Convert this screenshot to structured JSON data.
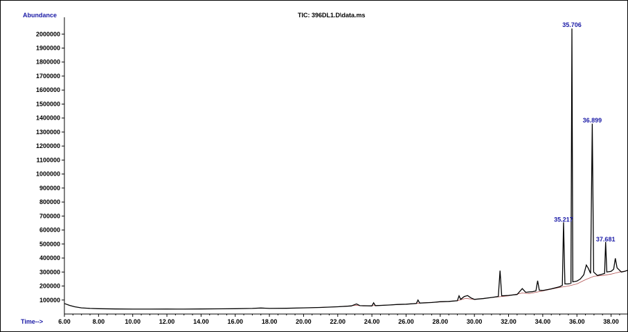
{
  "chart_data": {
    "type": "line",
    "title": "TIC: 396DL1.D\\data.ms",
    "ylabel": "Abundance",
    "xlabel": "Time-->",
    "xlim": [
      6.0,
      38.95
    ],
    "ylim": [
      0,
      2110000
    ],
    "grid": false,
    "x_ticks": [
      "6.00",
      "8.00",
      "10.00",
      "12.00",
      "14.00",
      "16.00",
      "18.00",
      "20.00",
      "22.00",
      "24.00",
      "26.00",
      "28.00",
      "30.00",
      "32.00",
      "34.00",
      "36.00",
      "38.00"
    ],
    "y_ticks": [
      "100000",
      "200000",
      "300000",
      "400000",
      "500000",
      "600000",
      "700000",
      "800000",
      "900000",
      "1000000",
      "1100000",
      "1200000",
      "1300000",
      "1400000",
      "1500000",
      "1600000",
      "1700000",
      "1800000",
      "1900000",
      "2000000"
    ],
    "peak_labels": [
      {
        "rt": "35.706",
        "x": 35.706,
        "y": 2040000
      },
      {
        "rt": "36.899",
        "x": 36.899,
        "y": 1360000
      },
      {
        "rt": "35.217",
        "x": 35.217,
        "y": 650000
      },
      {
        "rt": "37.681",
        "x": 37.681,
        "y": 510000
      }
    ],
    "baseline": [
      [
        6.0,
        75000
      ],
      [
        6.5,
        52000
      ],
      [
        7.0,
        42000
      ],
      [
        8.0,
        37000
      ],
      [
        10.0,
        35000
      ],
      [
        12.0,
        35000
      ],
      [
        14.0,
        36000
      ],
      [
        16.0,
        38000
      ],
      [
        17.5,
        41000
      ],
      [
        18.0,
        40000
      ],
      [
        20.0,
        44000
      ],
      [
        22.0,
        52000
      ],
      [
        23.1,
        62000
      ],
      [
        23.5,
        58000
      ],
      [
        24.0,
        60000
      ],
      [
        25.0,
        64000
      ],
      [
        26.0,
        70000
      ],
      [
        27.0,
        80000
      ],
      [
        28.0,
        86000
      ],
      [
        29.0,
        95000
      ],
      [
        29.5,
        112000
      ],
      [
        30.0,
        104000
      ],
      [
        31.0,
        118000
      ],
      [
        32.0,
        130000
      ],
      [
        32.8,
        150000
      ],
      [
        33.2,
        146000
      ],
      [
        34.0,
        165000
      ],
      [
        35.0,
        190000
      ],
      [
        35.5,
        200000
      ],
      [
        36.0,
        215000
      ],
      [
        36.5,
        245000
      ],
      [
        37.0,
        270000
      ],
      [
        37.5,
        275000
      ],
      [
        38.0,
        285000
      ],
      [
        38.5,
        300000
      ],
      [
        38.95,
        310000
      ]
    ],
    "series": [
      {
        "color": "#000000",
        "points": [
          [
            6.0,
            75000
          ],
          [
            6.3,
            62000
          ],
          [
            6.6,
            52000
          ],
          [
            7.0,
            44000
          ],
          [
            7.5,
            40000
          ],
          [
            8.0,
            38000
          ],
          [
            9.0,
            36000
          ],
          [
            10.0,
            35000
          ],
          [
            11.0,
            35000
          ],
          [
            12.0,
            35500
          ],
          [
            13.0,
            35000
          ],
          [
            14.0,
            36000
          ],
          [
            15.0,
            37000
          ],
          [
            16.0,
            38000
          ],
          [
            17.0,
            40000
          ],
          [
            17.5,
            43000
          ],
          [
            18.0,
            40000
          ],
          [
            19.0,
            41000
          ],
          [
            20.0,
            44000
          ],
          [
            21.0,
            47000
          ],
          [
            22.0,
            52000
          ],
          [
            22.8,
            58000
          ],
          [
            23.1,
            72000
          ],
          [
            23.3,
            60000
          ],
          [
            24.0,
            58000
          ],
          [
            24.1,
            80000
          ],
          [
            24.2,
            60000
          ],
          [
            25.0,
            64000
          ],
          [
            25.5,
            68000
          ],
          [
            26.0,
            70000
          ],
          [
            26.6,
            75000
          ],
          [
            26.7,
            100000
          ],
          [
            26.8,
            78000
          ],
          [
            27.5,
            82000
          ],
          [
            28.0,
            88000
          ],
          [
            28.5,
            90000
          ],
          [
            29.0,
            95000
          ],
          [
            29.1,
            130000
          ],
          [
            29.2,
            105000
          ],
          [
            29.4,
            125000
          ],
          [
            29.6,
            132000
          ],
          [
            29.8,
            115000
          ],
          [
            30.0,
            105000
          ],
          [
            30.5,
            110000
          ],
          [
            31.0,
            118000
          ],
          [
            31.4,
            125000
          ],
          [
            31.5,
            310000
          ],
          [
            31.6,
            130000
          ],
          [
            32.0,
            133000
          ],
          [
            32.5,
            140000
          ],
          [
            32.8,
            182000
          ],
          [
            33.0,
            155000
          ],
          [
            33.4,
            160000
          ],
          [
            33.6,
            165000
          ],
          [
            33.7,
            238000
          ],
          [
            33.8,
            170000
          ],
          [
            34.0,
            168000
          ],
          [
            34.5,
            180000
          ],
          [
            35.0,
            195000
          ],
          [
            35.15,
            205000
          ],
          [
            35.217,
            655000
          ],
          [
            35.3,
            215000
          ],
          [
            35.5,
            215000
          ],
          [
            35.65,
            220000
          ],
          [
            35.706,
            2040000
          ],
          [
            35.76,
            230000
          ],
          [
            36.0,
            235000
          ],
          [
            36.2,
            250000
          ],
          [
            36.4,
            280000
          ],
          [
            36.55,
            350000
          ],
          [
            36.65,
            330000
          ],
          [
            36.8,
            290000
          ],
          [
            36.899,
            1360000
          ],
          [
            36.98,
            300000
          ],
          [
            37.2,
            275000
          ],
          [
            37.5,
            285000
          ],
          [
            37.62,
            290000
          ],
          [
            37.681,
            515000
          ],
          [
            37.75,
            300000
          ],
          [
            38.0,
            305000
          ],
          [
            38.15,
            320000
          ],
          [
            38.25,
            398000
          ],
          [
            38.35,
            330000
          ],
          [
            38.6,
            300000
          ],
          [
            38.8,
            305000
          ],
          [
            38.95,
            312000
          ]
        ]
      }
    ]
  }
}
